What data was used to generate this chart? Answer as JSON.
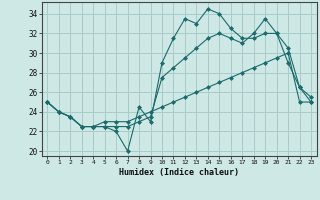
{
  "xlabel": "Humidex (Indice chaleur)",
  "background_color": "#cde8e5",
  "grid_color": "#a8ccca",
  "line_color": "#1a6b6b",
  "xlim": [
    -0.5,
    23.5
  ],
  "ylim": [
    19.5,
    35.2
  ],
  "xticks": [
    0,
    1,
    2,
    3,
    4,
    5,
    6,
    7,
    8,
    9,
    10,
    11,
    12,
    13,
    14,
    15,
    16,
    17,
    18,
    19,
    20,
    21,
    22,
    23
  ],
  "yticks": [
    20,
    22,
    24,
    26,
    28,
    30,
    32,
    34
  ],
  "series1_x": [
    0,
    1,
    2,
    3,
    4,
    5,
    6,
    7,
    8,
    9,
    10,
    11,
    12,
    13,
    14,
    15,
    16,
    17,
    18,
    19,
    20,
    21,
    22,
    23
  ],
  "series1_y": [
    25.0,
    24.0,
    23.5,
    22.5,
    22.5,
    22.5,
    22.0,
    20.0,
    24.5,
    23.0,
    29.0,
    31.5,
    33.5,
    33.0,
    34.5,
    34.0,
    32.5,
    31.5,
    31.5,
    32.0,
    32.0,
    29.0,
    26.5,
    25.5
  ],
  "series2_x": [
    0,
    1,
    2,
    3,
    4,
    5,
    6,
    7,
    8,
    9,
    10,
    11,
    12,
    13,
    14,
    15,
    16,
    17,
    18,
    19,
    20,
    21,
    22,
    23
  ],
  "series2_y": [
    25.0,
    24.0,
    23.5,
    22.5,
    22.5,
    22.5,
    22.5,
    22.5,
    23.0,
    23.5,
    27.5,
    28.5,
    29.5,
    30.5,
    31.5,
    32.0,
    31.5,
    31.0,
    32.0,
    33.5,
    32.0,
    30.5,
    26.5,
    25.0
  ],
  "series3_x": [
    0,
    1,
    2,
    3,
    4,
    5,
    6,
    7,
    8,
    9,
    10,
    11,
    12,
    13,
    14,
    15,
    16,
    17,
    18,
    19,
    20,
    21,
    22,
    23
  ],
  "series3_y": [
    25.0,
    24.0,
    23.5,
    22.5,
    22.5,
    23.0,
    23.0,
    23.0,
    23.5,
    24.0,
    24.5,
    25.0,
    25.5,
    26.0,
    26.5,
    27.0,
    27.5,
    28.0,
    28.5,
    29.0,
    29.5,
    30.0,
    25.0,
    25.0
  ]
}
